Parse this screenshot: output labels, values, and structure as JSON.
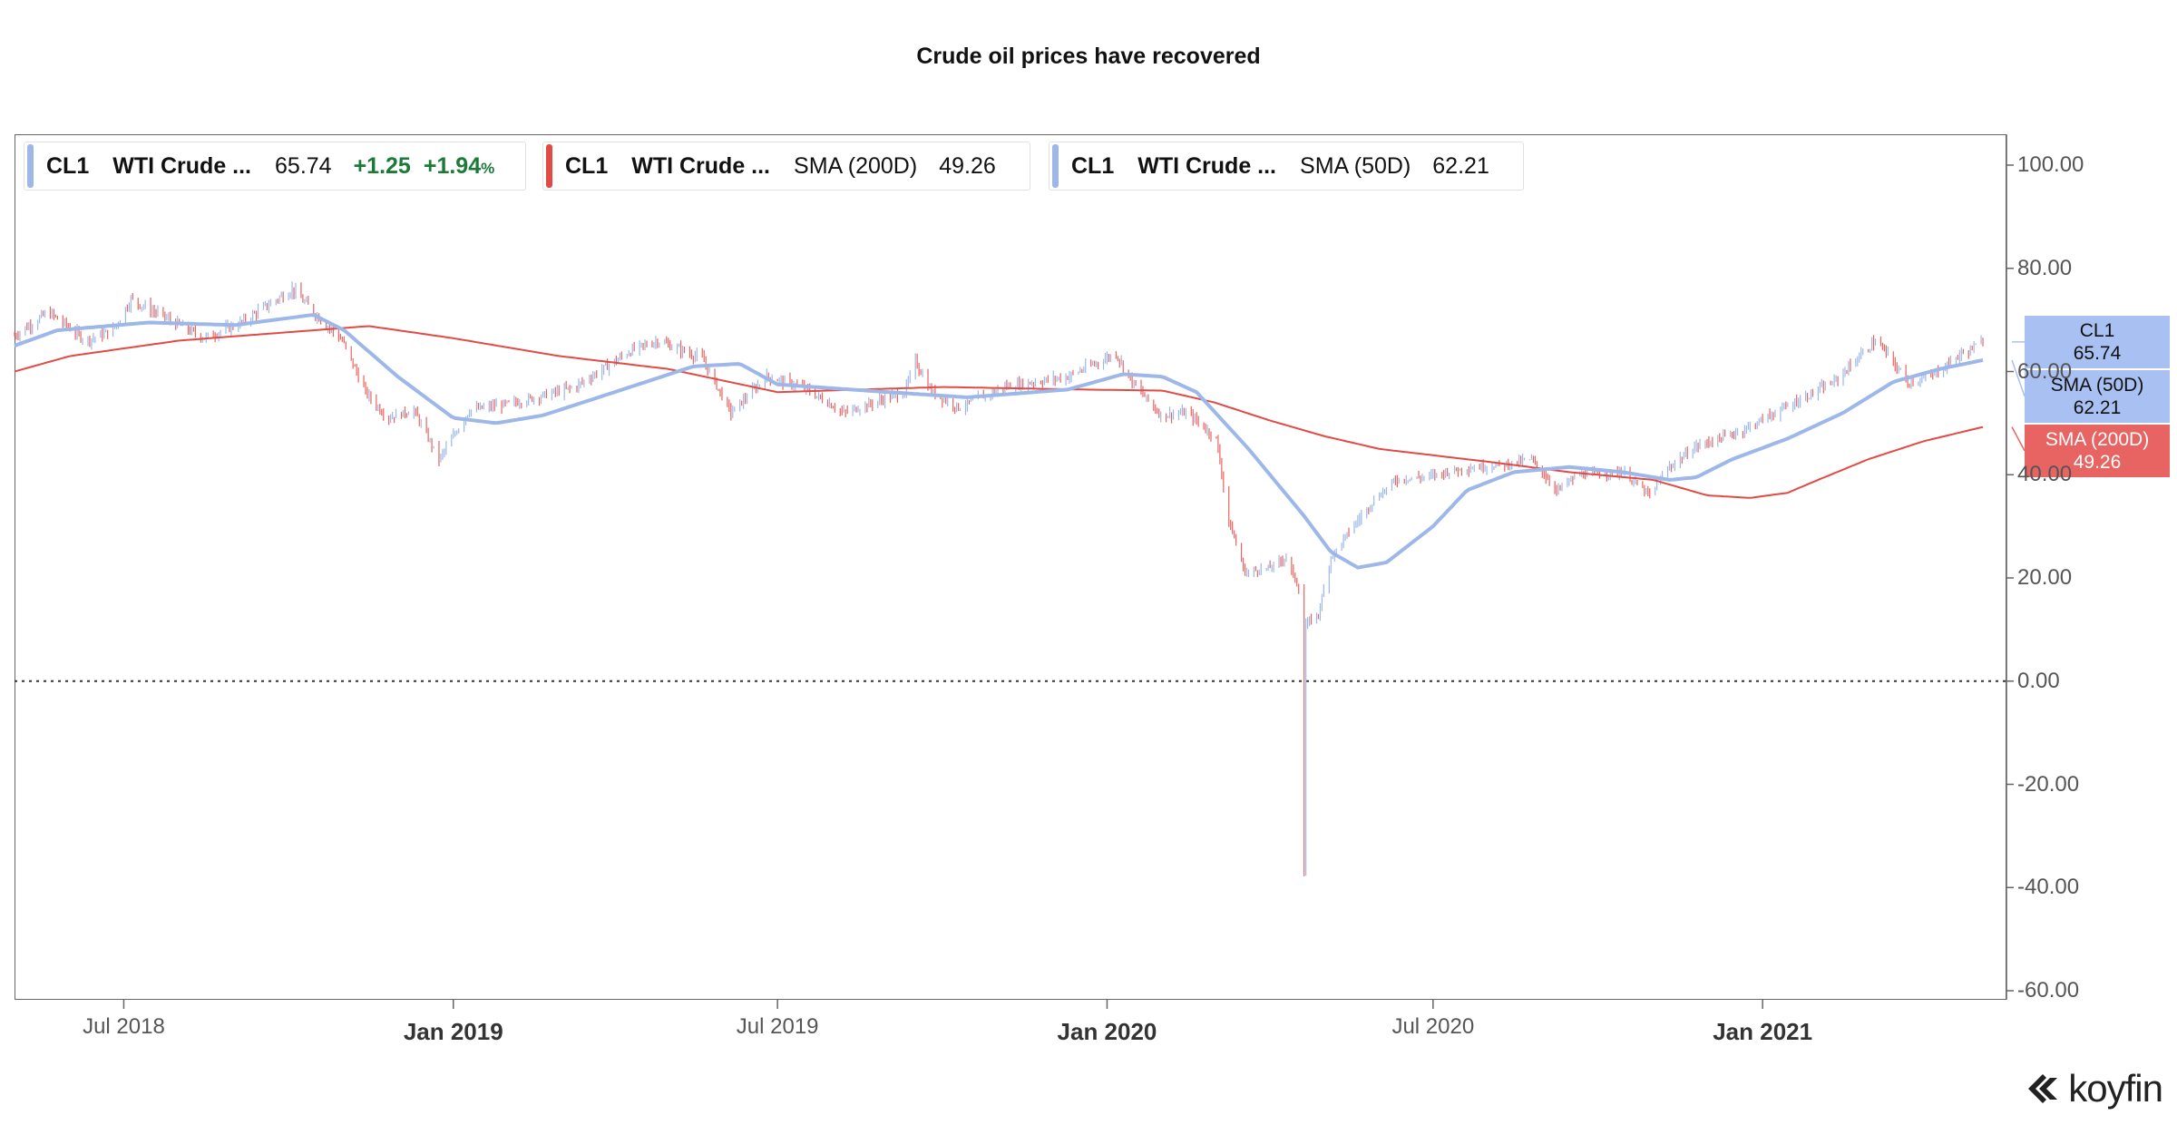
{
  "chart_data": {
    "type": "candlestick",
    "title": "Crude oil prices have recovered",
    "y_ticks": [
      "100.00",
      "80.00",
      "60.00",
      "40.00",
      "20.00",
      "0.00",
      "-20.00",
      "-40.00",
      "-60.00"
    ],
    "ylim": [
      -60,
      100
    ],
    "x_ticks": [
      {
        "label": "Jul 2018",
        "date": "2018-07-01",
        "year": false
      },
      {
        "label": "Jan 2019",
        "date": "2019-01-01",
        "year": true
      },
      {
        "label": "Jul 2019",
        "date": "2019-07-01",
        "year": false
      },
      {
        "label": "Jan 2020",
        "date": "2020-01-01",
        "year": true
      },
      {
        "label": "Jul 2020",
        "date": "2020-07-01",
        "year": false
      },
      {
        "label": "Jan 2021",
        "date": "2021-01-01",
        "year": true
      }
    ],
    "xlim": [
      "2018-05-01",
      "2021-05-05"
    ],
    "zero_line": 0,
    "series": [
      {
        "name": "CL1 WTI Crude ...",
        "kind": "candles",
        "colors": {
          "up": "#9db8e8",
          "down": "#e8645f"
        },
        "keypoints": [
          [
            "2018-05-01",
            67
          ],
          [
            "2018-05-20",
            71.5
          ],
          [
            "2018-06-10",
            66
          ],
          [
            "2018-06-25",
            68
          ],
          [
            "2018-07-05",
            74
          ],
          [
            "2018-08-01",
            69
          ],
          [
            "2018-08-15",
            66.5
          ],
          [
            "2018-09-05",
            69.5
          ],
          [
            "2018-10-03",
            76
          ],
          [
            "2018-10-15",
            71.5
          ],
          [
            "2018-10-31",
            66
          ],
          [
            "2018-11-13",
            56
          ],
          [
            "2018-11-25",
            51
          ],
          [
            "2018-12-10",
            52.5
          ],
          [
            "2018-12-24",
            43
          ],
          [
            "2019-01-10",
            52.5
          ],
          [
            "2019-02-05",
            54
          ],
          [
            "2019-03-10",
            57
          ],
          [
            "2019-04-10",
            64
          ],
          [
            "2019-04-25",
            66
          ],
          [
            "2019-05-20",
            62.5
          ],
          [
            "2019-06-05",
            52
          ],
          [
            "2019-06-25",
            59
          ],
          [
            "2019-07-15",
            57
          ],
          [
            "2019-08-07",
            52
          ],
          [
            "2019-09-10",
            56
          ],
          [
            "2019-09-16",
            62
          ],
          [
            "2019-09-25",
            56
          ],
          [
            "2019-10-10",
            53
          ],
          [
            "2019-11-05",
            57
          ],
          [
            "2019-12-10",
            59
          ],
          [
            "2020-01-06",
            63.5
          ],
          [
            "2020-01-15",
            58
          ],
          [
            "2020-01-31",
            51.5
          ],
          [
            "2020-02-15",
            52
          ],
          [
            "2020-03-02",
            47
          ],
          [
            "2020-03-09",
            31
          ],
          [
            "2020-03-18",
            21
          ],
          [
            "2020-04-01",
            22
          ],
          [
            "2020-04-10",
            24
          ],
          [
            "2020-04-17",
            18
          ],
          [
            "2020-04-20",
            -37.6
          ],
          [
            "2020-04-21",
            11
          ],
          [
            "2020-04-28",
            13
          ],
          [
            "2020-05-05",
            24
          ],
          [
            "2020-05-15",
            29
          ],
          [
            "2020-05-29",
            35
          ],
          [
            "2020-06-10",
            39
          ],
          [
            "2020-06-25",
            39.5
          ],
          [
            "2020-07-15",
            41
          ],
          [
            "2020-08-10",
            42
          ],
          [
            "2020-08-25",
            43
          ],
          [
            "2020-09-08",
            37
          ],
          [
            "2020-09-20",
            40
          ],
          [
            "2020-10-15",
            40.5
          ],
          [
            "2020-10-30",
            36
          ],
          [
            "2020-11-10",
            41.5
          ],
          [
            "2020-11-25",
            45.5
          ],
          [
            "2020-12-20",
            48.5
          ],
          [
            "2021-01-08",
            52
          ],
          [
            "2021-02-10",
            58
          ],
          [
            "2021-03-05",
            66
          ],
          [
            "2021-03-10",
            64
          ],
          [
            "2021-03-23",
            58
          ],
          [
            "2021-04-05",
            59
          ],
          [
            "2021-04-20",
            63
          ],
          [
            "2021-05-01",
            65
          ],
          [
            "2021-05-04",
            65.74
          ]
        ]
      },
      {
        "name": "SMA (200D)",
        "kind": "line",
        "color": "#e24a44",
        "keypoints": [
          [
            "2018-05-01",
            60
          ],
          [
            "2018-06-01",
            63
          ],
          [
            "2018-08-01",
            66
          ],
          [
            "2018-10-15",
            68
          ],
          [
            "2018-11-15",
            68.8
          ],
          [
            "2018-12-31",
            66.5
          ],
          [
            "2019-03-01",
            63
          ],
          [
            "2019-05-01",
            60.5
          ],
          [
            "2019-07-01",
            56
          ],
          [
            "2019-10-01",
            57
          ],
          [
            "2019-12-20",
            56.5
          ],
          [
            "2020-02-01",
            56.3
          ],
          [
            "2020-03-01",
            54
          ],
          [
            "2020-04-01",
            50.5
          ],
          [
            "2020-05-01",
            47.5
          ],
          [
            "2020-06-01",
            45
          ],
          [
            "2020-08-01",
            42.5
          ],
          [
            "2020-09-15",
            40.5
          ],
          [
            "2020-11-01",
            39
          ],
          [
            "2020-12-01",
            36
          ],
          [
            "2020-12-25",
            35.5
          ],
          [
            "2021-01-15",
            36.5
          ],
          [
            "2021-02-01",
            39
          ],
          [
            "2021-03-01",
            43
          ],
          [
            "2021-04-01",
            46.5
          ],
          [
            "2021-05-04",
            49.26
          ]
        ]
      },
      {
        "name": "SMA (50D)",
        "kind": "line",
        "color": "#9db8e8",
        "keypoints": [
          [
            "2018-05-01",
            65
          ],
          [
            "2018-05-25",
            68
          ],
          [
            "2018-07-15",
            69.5
          ],
          [
            "2018-09-01",
            69
          ],
          [
            "2018-10-15",
            71
          ],
          [
            "2018-11-01",
            68
          ],
          [
            "2018-12-01",
            59
          ],
          [
            "2019-01-01",
            51
          ],
          [
            "2019-01-25",
            50
          ],
          [
            "2019-02-20",
            51.5
          ],
          [
            "2019-04-01",
            56
          ],
          [
            "2019-05-15",
            61
          ],
          [
            "2019-06-10",
            61.5
          ],
          [
            "2019-07-01",
            57.5
          ],
          [
            "2019-09-01",
            56
          ],
          [
            "2019-10-15",
            55
          ],
          [
            "2019-12-10",
            56.5
          ],
          [
            "2020-01-10",
            59.5
          ],
          [
            "2020-02-01",
            59
          ],
          [
            "2020-02-20",
            56
          ],
          [
            "2020-03-20",
            45
          ],
          [
            "2020-04-20",
            32
          ],
          [
            "2020-05-05",
            25
          ],
          [
            "2020-05-20",
            22
          ],
          [
            "2020-06-05",
            23
          ],
          [
            "2020-07-01",
            30
          ],
          [
            "2020-07-20",
            37
          ],
          [
            "2020-08-15",
            40.5
          ],
          [
            "2020-09-15",
            41.5
          ],
          [
            "2020-10-15",
            40.5
          ],
          [
            "2020-11-10",
            39
          ],
          [
            "2020-11-25",
            39.5
          ],
          [
            "2020-12-15",
            43
          ],
          [
            "2021-01-15",
            47
          ],
          [
            "2021-02-15",
            52
          ],
          [
            "2021-03-15",
            58
          ],
          [
            "2021-04-10",
            60.5
          ],
          [
            "2021-05-04",
            62.21
          ]
        ]
      }
    ]
  },
  "legends": [
    {
      "symbol": "CL1",
      "name": "WTI Crude ...",
      "value": "65.74",
      "change": "+1.25",
      "percent": "+1.94",
      "percent_sign": "%",
      "color": "#9db8e8"
    },
    {
      "symbol": "CL1",
      "name": "WTI Crude ...",
      "indicator": "SMA (200D)",
      "value": "49.26",
      "color": "#e24a44"
    },
    {
      "symbol": "CL1",
      "name": "WTI Crude ...",
      "indicator": "SMA (50D)",
      "value": "62.21",
      "color": "#9db8e8"
    }
  ],
  "price_tags": [
    {
      "label": "CL1",
      "value": "65.74",
      "bg": "#a8c1f2",
      "fg": "#111111"
    },
    {
      "label": "SMA (50D)",
      "value": "62.21",
      "bg": "#a8c1f2",
      "fg": "#111111"
    },
    {
      "label": "SMA (200D)",
      "value": "49.26",
      "bg": "#e86463",
      "fg": "#ffffff"
    }
  ],
  "brand": "koyfin"
}
